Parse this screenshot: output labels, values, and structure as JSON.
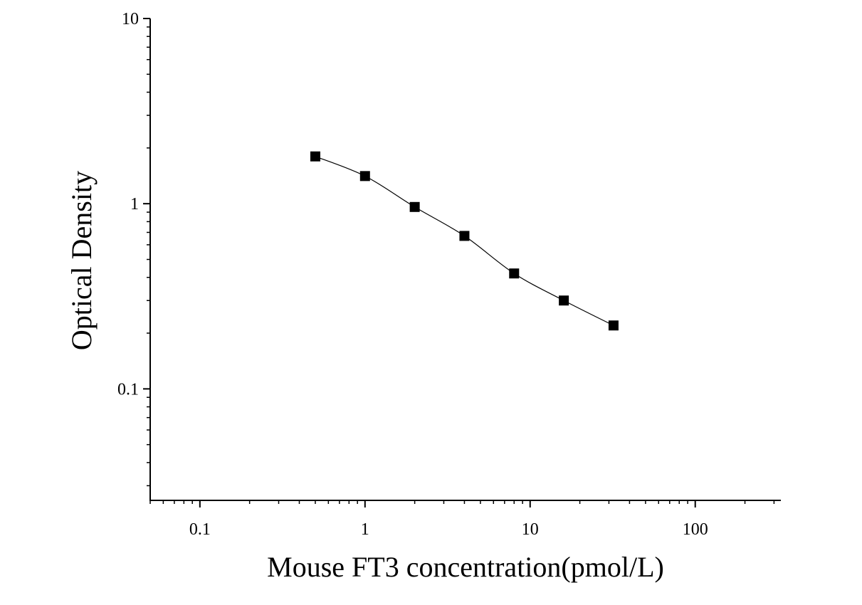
{
  "chart_data": {
    "type": "scatter",
    "x_label": "Mouse FT3 concentration(pmol/L)",
    "y_label": "Optical Density",
    "x": [
      0.5,
      1,
      2,
      4,
      8,
      16,
      32
    ],
    "values": [
      1.8,
      1.41,
      0.96,
      0.67,
      0.42,
      0.3,
      0.22
    ],
    "color": "#000000",
    "fit_line": true,
    "xlog": true,
    "ylog": true,
    "xlim": [
      0.05,
      330
    ],
    "ylim": [
      0.025,
      10
    ],
    "xticks": [
      0.1,
      1,
      10,
      100
    ],
    "yticks": [
      0.1,
      1,
      10
    ],
    "grid": false
  }
}
